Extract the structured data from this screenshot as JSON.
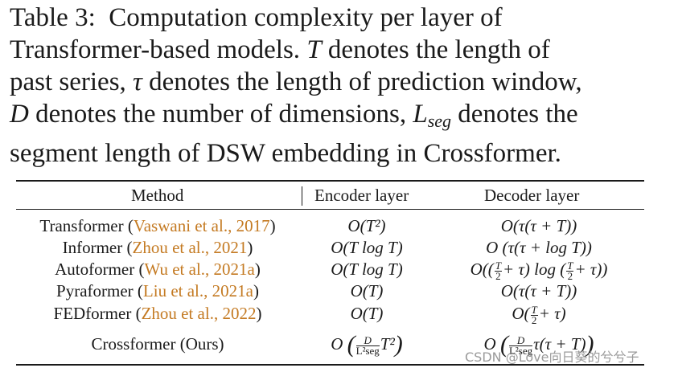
{
  "caption": {
    "label": "Table 3:",
    "line1_rest": "Computation complexity per layer of",
    "line2_a": "Transformer-based models.",
    "line2_sym": "T",
    "line2_b": "denotes the length of",
    "line3_a": "past series,",
    "line3_sym": "τ",
    "line3_b": "denotes the length of prediction window,",
    "line4_sym": "D",
    "line4_a": "denotes the number of dimensions,",
    "line4_sym2": "L",
    "line4_sub": "seg",
    "line4_b": "denotes the",
    "line5": "segment length of DSW embedding in Crossformer."
  },
  "table": {
    "headers": {
      "method": "Method",
      "encoder": "Encoder layer",
      "decoder": "Decoder layer"
    },
    "rows": [
      {
        "name": "Transformer",
        "cite": "Vaswani et al., 2017",
        "encoder": "O(T²)",
        "decoder": "O(τ(τ + T))"
      },
      {
        "name": "Informer",
        "cite": "Zhou et al., 2021",
        "encoder": "O(T log T)",
        "decoder": "O (τ(τ + log T))"
      },
      {
        "name": "Autoformer",
        "cite": "Wu et al., 2021a",
        "encoder": "O(T log T)",
        "decoder_a": "O((",
        "decoder_b": "+ τ) log (",
        "decoder_c": "+ τ))"
      },
      {
        "name": "Pyraformer",
        "cite": "Liu et al., 2021a",
        "encoder": "O(T)",
        "decoder": "O(τ(τ + T))"
      },
      {
        "name": "FEDformer",
        "cite": "Zhou et al., 2022",
        "encoder": "O(T)",
        "decoder_a": "O(",
        "decoder_b": "+ τ)"
      },
      {
        "name": "Crossformer (Ours)",
        "encoder_a": "O",
        "encoder_b": "T²",
        "decoder_a": "O",
        "decoder_b": "τ(τ + T)"
      }
    ],
    "frac": {
      "T": "T",
      "two": "2",
      "D": "D",
      "Lseg": "L²seg"
    }
  },
  "watermark": "CSDN @Love向日葵的兮兮子"
}
